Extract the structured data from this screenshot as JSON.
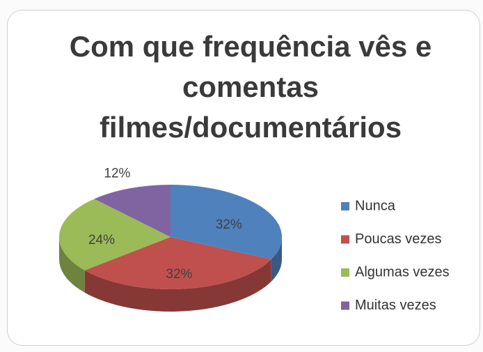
{
  "chart_data": {
    "type": "pie",
    "title": "Com que frequência vês e comentas filmes/documentários",
    "categories": [
      "Nunca",
      "Poucas vezes",
      "Algumas vezes",
      "Muitas vezes"
    ],
    "values": [
      32,
      32,
      24,
      12
    ],
    "value_labels": [
      "32%",
      "32%",
      "24%",
      "12%"
    ],
    "colors": [
      "#4f81bd",
      "#c0504d",
      "#9bbb59",
      "#8064a2"
    ],
    "legend": "right"
  }
}
